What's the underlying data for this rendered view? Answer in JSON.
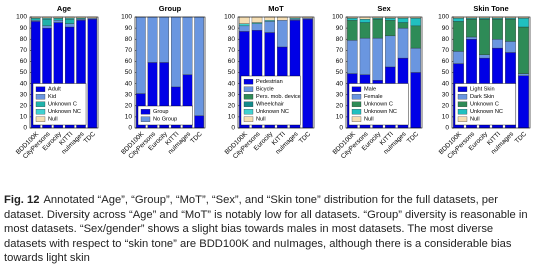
{
  "chart_data": [
    {
      "type": "stacked_bar",
      "title": "Age",
      "categories": [
        "BDD100K",
        "CityPersons",
        "Eurocity",
        "KITTI",
        "nuImages",
        "TDC"
      ],
      "series": [
        {
          "name": "Adult",
          "color": "#0000e6",
          "values": [
            96,
            90,
            95,
            91,
            97,
            98
          ]
        },
        {
          "name": "Kid",
          "color": "#6a96e0",
          "values": [
            1,
            2,
            2,
            3,
            1,
            1
          ]
        },
        {
          "name": "Unknown C",
          "color": "#20b2aa",
          "values": [
            2,
            6,
            2,
            4,
            1,
            0
          ]
        },
        {
          "name": "Unknown NC",
          "color": "#40d0d0",
          "values": [
            0,
            1,
            0,
            1,
            0,
            0
          ]
        },
        {
          "name": "Null",
          "color": "#f5deb3",
          "values": [
            1,
            1,
            1,
            1,
            1,
            1
          ]
        }
      ],
      "ylim": [
        0,
        100
      ],
      "yticks": [
        0,
        10,
        20,
        30,
        40,
        50,
        60,
        70,
        80,
        90,
        100
      ],
      "legend": "lower left"
    },
    {
      "type": "stacked_bar",
      "title": "Group",
      "categories": [
        "BDD100K",
        "CityPersons",
        "Eurocity",
        "KITTI",
        "nuImages",
        "TDC"
      ],
      "series": [
        {
          "name": "Group",
          "color": "#0000e6",
          "values": [
            31,
            59,
            59,
            37,
            48,
            11
          ]
        },
        {
          "name": "No Group",
          "color": "#6a96e0",
          "values": [
            69,
            41,
            41,
            63,
            52,
            89
          ]
        }
      ],
      "ylim": [
        0,
        100
      ],
      "yticks": [
        0,
        10,
        20,
        30,
        40,
        50,
        60,
        70,
        80,
        90,
        100
      ],
      "legend": "lower left"
    },
    {
      "type": "stacked_bar",
      "title": "MoT",
      "categories": [
        "BDD100K",
        "CityPersons",
        "Eurocity",
        "KITTI",
        "nuImages",
        "TDC"
      ],
      "series": [
        {
          "name": "Pedestrian",
          "color": "#0000e6",
          "values": [
            87,
            88,
            86,
            73,
            97,
            98
          ]
        },
        {
          "name": "Bicycle",
          "color": "#6a96e0",
          "values": [
            5,
            6,
            10,
            24,
            1,
            1
          ]
        },
        {
          "name": "Pers. mob. device",
          "color": "#2e8b57",
          "values": [
            0,
            0,
            0,
            0,
            0,
            0
          ]
        },
        {
          "name": "Wheelchair",
          "color": "#138a8a",
          "values": [
            0,
            0,
            0,
            0,
            0,
            0
          ]
        },
        {
          "name": "Unknown NC",
          "color": "#40d0d0",
          "values": [
            2,
            1,
            1,
            0,
            1,
            0
          ]
        },
        {
          "name": "Null",
          "color": "#f5deb3",
          "values": [
            6,
            5,
            3,
            3,
            1,
            1
          ]
        }
      ],
      "ylim": [
        0,
        100
      ],
      "yticks": [
        0,
        10,
        20,
        30,
        40,
        50,
        60,
        70,
        80,
        90,
        100
      ],
      "legend": "lower left"
    },
    {
      "type": "stacked_bar",
      "title": "Sex",
      "categories": [
        "BDD100K",
        "CityPersons",
        "Eurocity",
        "KITTI",
        "nuImages",
        "TDC"
      ],
      "series": [
        {
          "name": "Male",
          "color": "#0000e6",
          "values": [
            49,
            48,
            43,
            55,
            63,
            50
          ]
        },
        {
          "name": "Female",
          "color": "#6a96e0",
          "values": [
            30,
            33,
            38,
            28,
            27,
            22
          ]
        },
        {
          "name": "Unknown C",
          "color": "#2e8b57",
          "values": [
            18,
            14,
            17,
            14,
            5,
            20
          ]
        },
        {
          "name": "Unknown NC",
          "color": "#20c0c0",
          "values": [
            2,
            3,
            1,
            2,
            4,
            7
          ]
        },
        {
          "name": "Null",
          "color": "#f5deb3",
          "values": [
            1,
            2,
            1,
            1,
            1,
            1
          ]
        }
      ],
      "ylim": [
        0,
        100
      ],
      "yticks": [
        0,
        10,
        20,
        30,
        40,
        50,
        60,
        70,
        80,
        90,
        100
      ],
      "legend": "lower left"
    },
    {
      "type": "stacked_bar",
      "title": "Skin Tone",
      "categories": [
        "BDD100K",
        "CityPersons",
        "Eurocity",
        "KITTI",
        "nuImages",
        "TDC"
      ],
      "series": [
        {
          "name": "Light Skin",
          "color": "#0000e6",
          "values": [
            58,
            80,
            63,
            72,
            68,
            47
          ]
        },
        {
          "name": "Dark Skin",
          "color": "#6a96e0",
          "values": [
            11,
            2,
            3,
            8,
            10,
            2
          ]
        },
        {
          "name": "Unknown C",
          "color": "#2e8b57",
          "values": [
            27,
            16,
            32,
            18,
            20,
            42
          ]
        },
        {
          "name": "Unknown NC",
          "color": "#20c0c0",
          "values": [
            3,
            1,
            1,
            1,
            1,
            8
          ]
        },
        {
          "name": "Null",
          "color": "#f5deb3",
          "values": [
            1,
            1,
            1,
            1,
            1,
            1
          ]
        }
      ],
      "ylim": [
        0,
        100
      ],
      "yticks": [
        0,
        10,
        20,
        30,
        40,
        50,
        60,
        70,
        80,
        90,
        100
      ],
      "legend": "lower left"
    }
  ],
  "caption": {
    "label": "Fig. 12",
    "text": "Annotated “Age”, “Group”, “MoT”, “Sex”, and “Skin tone” distribution for the full datasets, per dataset. Diversity across “Age” and “MoT” is notably low for all datasets. “Group” diversity is reasonable in most datasets. “Sex/gender” shows a slight bias towards males in most datasets. The most diverse datasets with respect to “skin tone” are BDD100K and nuImages, although there is a considerable bias towards light skin"
  }
}
